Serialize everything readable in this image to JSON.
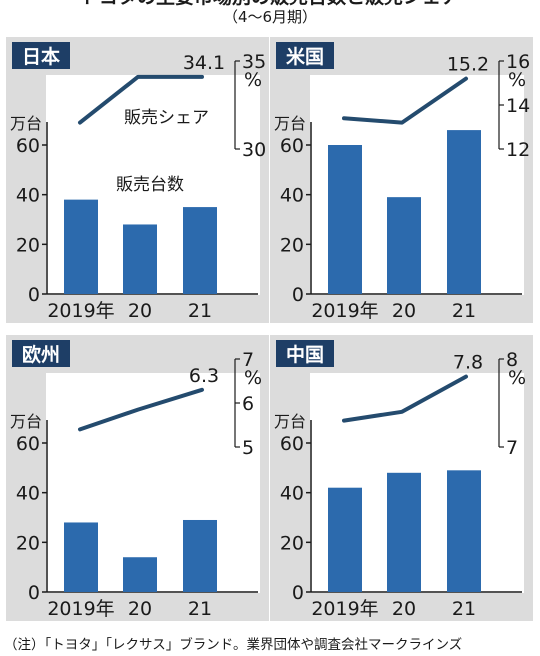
{
  "header": {
    "title": "トヨタの主要市場別の販売台数と販売シェア",
    "period": "（4〜6月期）"
  },
  "note": "（注）「トヨタ」「レクサス」ブランド。業界団体や調査会社マークラインズ",
  "colors": {
    "bar": "#2c6aad",
    "line": "#244b6e",
    "label_bg": "#1e3e66",
    "panel_bg": "#dcdcdc",
    "plot_bg": "#ffffff"
  },
  "chart_data": [
    {
      "type": "bar",
      "region": "日本",
      "categories": [
        "2019年",
        "20",
        "21"
      ],
      "values": [
        38,
        28,
        35
      ],
      "value_unit": "万台",
      "value_label": "販売台数",
      "ylim": [
        0,
        60
      ],
      "yticks": [
        "0",
        "20",
        "40",
        "60"
      ],
      "share_series": {
        "label": "販売シェア",
        "unit": "%",
        "values": [
          31.5,
          34.1,
          34.1
        ],
        "end_label": "34.1",
        "ylim": [
          30,
          35
        ],
        "yticks": [
          "35",
          "30"
        ]
      }
    },
    {
      "type": "bar",
      "region": "米国",
      "categories": [
        "2019年",
        "20",
        "21"
      ],
      "values": [
        60,
        39,
        66
      ],
      "value_unit": "万台",
      "ylim": [
        0,
        60
      ],
      "yticks": [
        "0",
        "20",
        "40",
        "60"
      ],
      "share_series": {
        "unit": "%",
        "values": [
          13.4,
          13.2,
          15.2
        ],
        "end_label": "15.2",
        "ylim": [
          12,
          16
        ],
        "yticks": [
          "16",
          "14",
          "12"
        ]
      }
    },
    {
      "type": "bar",
      "region": "欧州",
      "categories": [
        "2019年",
        "20",
        "21"
      ],
      "values": [
        28,
        14,
        29
      ],
      "value_unit": "万台",
      "ylim": [
        0,
        60
      ],
      "yticks": [
        "0",
        "20",
        "40",
        "60"
      ],
      "share_series": {
        "unit": "%",
        "values": [
          5.4,
          5.85,
          6.3
        ],
        "end_label": "6.3",
        "ylim": [
          5,
          7
        ],
        "yticks": [
          "7",
          "6",
          "5"
        ]
      }
    },
    {
      "type": "bar",
      "region": "中国",
      "categories": [
        "2019年",
        "20",
        "21"
      ],
      "values": [
        42,
        48,
        49
      ],
      "value_unit": "万台",
      "ylim": [
        0,
        60
      ],
      "yticks": [
        "0",
        "20",
        "40",
        "60"
      ],
      "share_series": {
        "unit": "%",
        "values": [
          7.3,
          7.4,
          7.8
        ],
        "end_label": "7.8",
        "ylim": [
          7,
          8
        ],
        "yticks": [
          "8",
          "7"
        ]
      }
    }
  ]
}
